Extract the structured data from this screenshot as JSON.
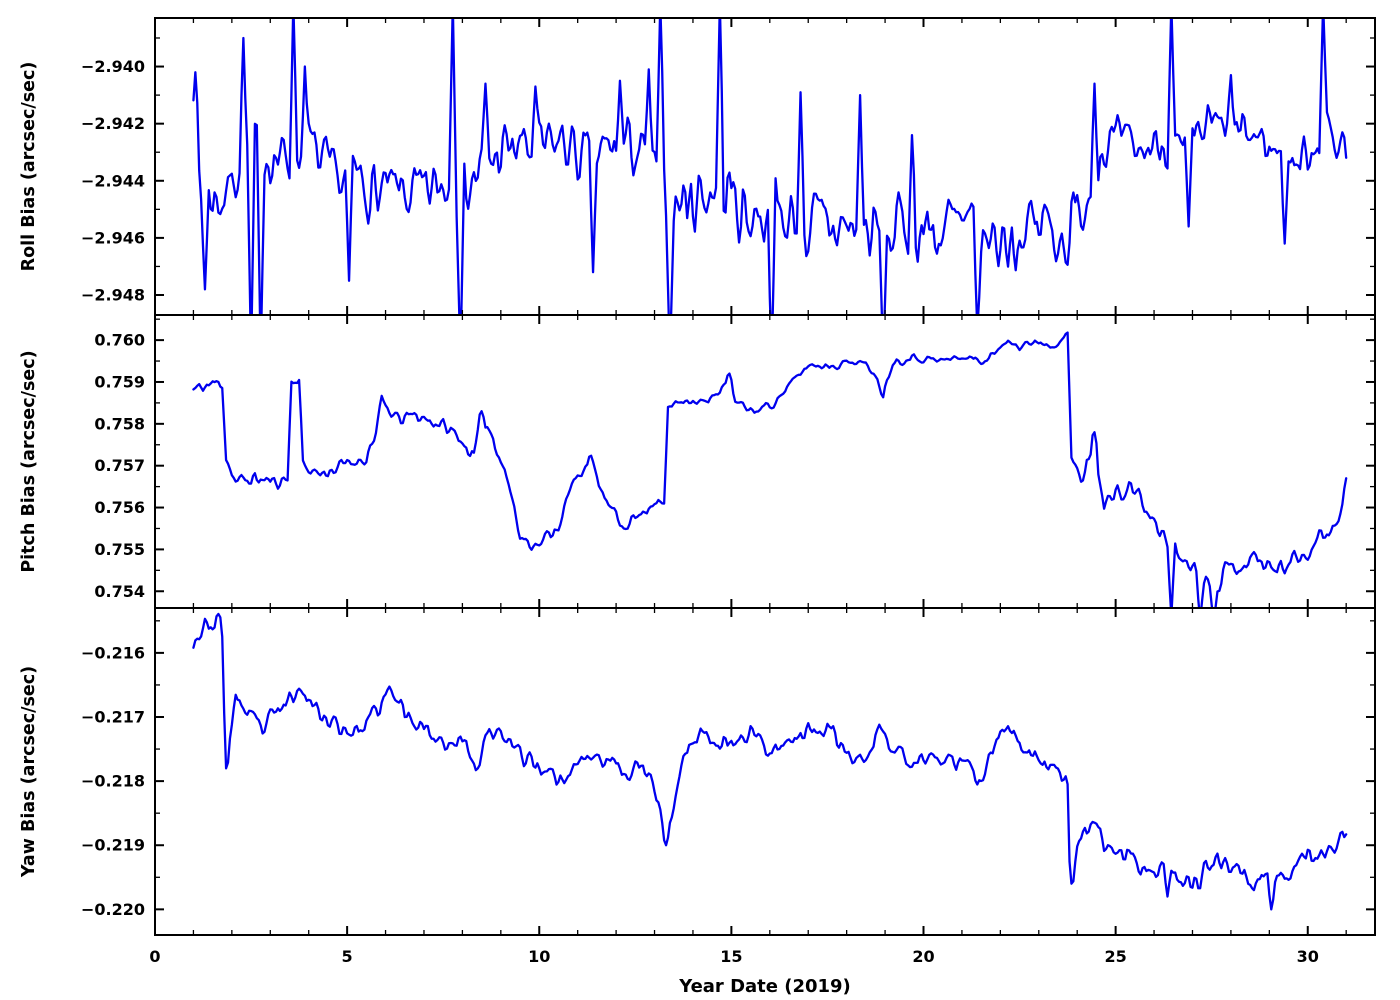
{
  "figure": {
    "xlabel": "Year Date (2019)",
    "x_range": [
      0,
      31.75
    ],
    "x_ticks": [
      0,
      5,
      10,
      15,
      20,
      25,
      30
    ],
    "x_tick_labels": [
      "0",
      "5",
      "10",
      "15",
      "20",
      "25",
      "30"
    ],
    "x_minor_step": 1,
    "grid": false,
    "background": "#ffffff",
    "axis_color": "#000000",
    "line_color": "#0000ee"
  },
  "chart_data": [
    {
      "type": "line",
      "name": "roll-bias",
      "ylabel": "Roll Bias (arcsec/sec)",
      "ylim": [
        -2.9487,
        -2.9383
      ],
      "y_ticks": [
        -2.94,
        -2.942,
        -2.944,
        -2.946,
        -2.948
      ],
      "y_tick_labels": [
        "−2.940",
        "−2.942",
        "−2.944",
        "−2.946",
        "−2.948"
      ],
      "y_minor_step": 0.001,
      "x_start": 1.0,
      "x_end": 31.0,
      "dx": 0.05,
      "seed": 7,
      "noise_amp": 0.001,
      "noise_segments": [
        [
          1,
          13,
          1.0
        ],
        [
          13,
          24,
          1.25
        ],
        [
          24,
          31,
          0.75
        ]
      ],
      "trend": [
        [
          1.0,
          -2.9415
        ],
        [
          1.2,
          -2.9445
        ],
        [
          1.8,
          -2.9446
        ],
        [
          2.2,
          -2.9432
        ],
        [
          2.8,
          -2.9428
        ],
        [
          3.4,
          -2.9434
        ],
        [
          4.0,
          -2.9428
        ],
        [
          4.6,
          -2.944
        ],
        [
          5.2,
          -2.9438
        ],
        [
          5.8,
          -2.9445
        ],
        [
          6.4,
          -2.9444
        ],
        [
          7.0,
          -2.9446
        ],
        [
          7.6,
          -2.944
        ],
        [
          8.2,
          -2.9441
        ],
        [
          8.8,
          -2.9432
        ],
        [
          9.4,
          -2.9428
        ],
        [
          10.0,
          -2.943
        ],
        [
          10.6,
          -2.9426
        ],
        [
          11.2,
          -2.9434
        ],
        [
          11.8,
          -2.943
        ],
        [
          12.4,
          -2.9427
        ],
        [
          13.0,
          -2.9438
        ],
        [
          13.6,
          -2.9448
        ],
        [
          14.2,
          -2.9444
        ],
        [
          14.8,
          -2.9442
        ],
        [
          15.4,
          -2.9452
        ],
        [
          16.0,
          -2.945
        ],
        [
          16.6,
          -2.9454
        ],
        [
          17.2,
          -2.9457
        ],
        [
          17.8,
          -2.9456
        ],
        [
          18.4,
          -2.9458
        ],
        [
          19.0,
          -2.946
        ],
        [
          19.6,
          -2.9455
        ],
        [
          20.2,
          -2.9458
        ],
        [
          20.8,
          -2.9456
        ],
        [
          21.4,
          -2.9462
        ],
        [
          22.0,
          -2.946
        ],
        [
          22.6,
          -2.9458
        ],
        [
          23.2,
          -2.9455
        ],
        [
          23.8,
          -2.9459
        ],
        [
          24.2,
          -2.9448
        ],
        [
          24.6,
          -2.943
        ],
        [
          25.0,
          -2.9426
        ],
        [
          25.6,
          -2.943
        ],
        [
          26.2,
          -2.9426
        ],
        [
          26.8,
          -2.9432
        ],
        [
          27.4,
          -2.942
        ],
        [
          28.0,
          -2.9424
        ],
        [
          28.6,
          -2.9424
        ],
        [
          29.2,
          -2.943
        ],
        [
          29.8,
          -2.9434
        ],
        [
          30.4,
          -2.9422
        ],
        [
          31.0,
          -2.9428
        ]
      ],
      "spikes": [
        [
          1.05,
          -2.9402
        ],
        [
          1.3,
          -2.9478
        ],
        [
          2.3,
          -2.939
        ],
        [
          2.5,
          -2.9502
        ],
        [
          2.75,
          -2.9502
        ],
        [
          3.6,
          -2.9378
        ],
        [
          3.9,
          -2.94
        ],
        [
          5.05,
          -2.9475
        ],
        [
          7.75,
          -2.9378
        ],
        [
          7.95,
          -2.9502
        ],
        [
          8.6,
          -2.9406
        ],
        [
          9.9,
          -2.9407
        ],
        [
          11.4,
          -2.9472
        ],
        [
          12.1,
          -2.9405
        ],
        [
          12.85,
          -2.9401
        ],
        [
          13.15,
          -2.9378
        ],
        [
          13.4,
          -2.9502
        ],
        [
          14.7,
          -2.9378
        ],
        [
          16.05,
          -2.9502
        ],
        [
          16.8,
          -2.9409
        ],
        [
          18.35,
          -2.941
        ],
        [
          18.95,
          -2.9502
        ],
        [
          19.7,
          -2.9424
        ],
        [
          21.4,
          -2.9492
        ],
        [
          24.45,
          -2.9406
        ],
        [
          26.45,
          -2.9378
        ],
        [
          26.9,
          -2.9456
        ],
        [
          28.0,
          -2.9403
        ],
        [
          29.4,
          -2.9462
        ],
        [
          30.4,
          -2.9378
        ]
      ]
    },
    {
      "type": "line",
      "name": "pitch-bias",
      "ylabel": "Pitch Bias (arcsec/sec)",
      "ylim": [
        0.7536,
        0.7606
      ],
      "y_ticks": [
        0.76,
        0.759,
        0.758,
        0.757,
        0.756,
        0.755,
        0.754
      ],
      "y_tick_labels": [
        "0.760",
        "0.759",
        "0.758",
        "0.757",
        "0.756",
        "0.755",
        "0.754"
      ],
      "y_minor_step": 0.0005,
      "x_start": 1.0,
      "x_end": 31.0,
      "dx": 0.05,
      "seed": 11,
      "noise_amp": 0.00016,
      "noise_segments": [
        [
          1,
          13.3,
          1.0
        ],
        [
          13.3,
          23.8,
          0.6
        ],
        [
          23.8,
          31,
          1.4
        ]
      ],
      "trend": [
        [
          1.0,
          0.7588
        ],
        [
          1.3,
          0.7589
        ],
        [
          1.75,
          0.759
        ],
        [
          1.85,
          0.7572
        ],
        [
          2.1,
          0.7566
        ],
        [
          2.6,
          0.7567
        ],
        [
          3.1,
          0.7566
        ],
        [
          3.45,
          0.7567
        ],
        [
          3.55,
          0.759
        ],
        [
          3.75,
          0.7591
        ],
        [
          3.85,
          0.757
        ],
        [
          4.3,
          0.7568
        ],
        [
          4.9,
          0.757
        ],
        [
          5.5,
          0.7572
        ],
        [
          5.75,
          0.7578
        ],
        [
          5.9,
          0.7585
        ],
        [
          6.3,
          0.7581
        ],
        [
          6.8,
          0.7582
        ],
        [
          7.4,
          0.758
        ],
        [
          7.9,
          0.7577
        ],
        [
          8.3,
          0.7572
        ],
        [
          8.5,
          0.7582
        ],
        [
          8.8,
          0.7577
        ],
        [
          9.2,
          0.7566
        ],
        [
          9.5,
          0.7553
        ],
        [
          10.0,
          0.7551
        ],
        [
          10.5,
          0.7556
        ],
        [
          10.9,
          0.7566
        ],
        [
          11.3,
          0.7572
        ],
        [
          11.7,
          0.7562
        ],
        [
          12.1,
          0.7556
        ],
        [
          12.6,
          0.7558
        ],
        [
          13.0,
          0.7562
        ],
        [
          13.25,
          0.756
        ],
        [
          13.35,
          0.7584
        ],
        [
          13.8,
          0.7586
        ],
        [
          14.4,
          0.7585
        ],
        [
          14.95,
          0.7591
        ],
        [
          15.1,
          0.7585
        ],
        [
          15.6,
          0.7583
        ],
        [
          16.1,
          0.7585
        ],
        [
          16.6,
          0.759
        ],
        [
          17.0,
          0.7594
        ],
        [
          17.6,
          0.7594
        ],
        [
          18.2,
          0.7595
        ],
        [
          18.7,
          0.7593
        ],
        [
          18.95,
          0.7587
        ],
        [
          19.2,
          0.7595
        ],
        [
          19.8,
          0.7596
        ],
        [
          20.4,
          0.7595
        ],
        [
          21.0,
          0.7596
        ],
        [
          21.6,
          0.7595
        ],
        [
          21.9,
          0.7597
        ],
        [
          22.2,
          0.7601
        ],
        [
          22.5,
          0.7598
        ],
        [
          22.9,
          0.76
        ],
        [
          23.3,
          0.7599
        ],
        [
          23.75,
          0.7601
        ],
        [
          23.85,
          0.7572
        ],
        [
          24.1,
          0.7566
        ],
        [
          24.45,
          0.7577
        ],
        [
          24.7,
          0.7561
        ],
        [
          25.1,
          0.7563
        ],
        [
          25.5,
          0.7565
        ],
        [
          25.9,
          0.7557
        ],
        [
          26.3,
          0.7553
        ],
        [
          26.7,
          0.7548
        ],
        [
          27.1,
          0.7546
        ],
        [
          27.5,
          0.7541
        ],
        [
          27.9,
          0.7545
        ],
        [
          28.3,
          0.7547
        ],
        [
          28.7,
          0.7548
        ],
        [
          29.1,
          0.7545
        ],
        [
          29.5,
          0.7547
        ],
        [
          29.9,
          0.7549
        ],
        [
          30.3,
          0.7553
        ],
        [
          30.7,
          0.7556
        ],
        [
          31.0,
          0.7562
        ]
      ],
      "spikes": [
        [
          8.5,
          0.7583
        ],
        [
          14.95,
          0.7592
        ],
        [
          24.45,
          0.7578
        ],
        [
          26.45,
          0.7534
        ],
        [
          27.2,
          0.7533
        ],
        [
          27.55,
          0.7533
        ],
        [
          31.0,
          0.7567
        ]
      ]
    },
    {
      "type": "line",
      "name": "yaw-bias",
      "ylabel": "Yaw Bias (arcsec/sec)",
      "ylim": [
        -0.2204,
        -0.2153
      ],
      "y_ticks": [
        -0.216,
        -0.217,
        -0.218,
        -0.219,
        -0.22
      ],
      "y_tick_labels": [
        "−0.216",
        "−0.217",
        "−0.218",
        "−0.219",
        "−0.220"
      ],
      "y_minor_step": 0.0005,
      "x_start": 1.0,
      "x_end": 31.0,
      "dx": 0.05,
      "seed": 23,
      "noise_amp": 0.00014,
      "noise_segments": [
        [
          1,
          23.8,
          1.0
        ],
        [
          23.8,
          31,
          1.1
        ]
      ],
      "trend": [
        [
          1.0,
          -0.2158
        ],
        [
          1.3,
          -0.2156
        ],
        [
          1.7,
          -0.2155
        ],
        [
          1.8,
          -0.216
        ],
        [
          1.9,
          -0.2177
        ],
        [
          2.1,
          -0.2166
        ],
        [
          2.4,
          -0.217
        ],
        [
          2.8,
          -0.2172
        ],
        [
          3.2,
          -0.2169
        ],
        [
          3.6,
          -0.2167
        ],
        [
          3.9,
          -0.2165
        ],
        [
          4.2,
          -0.2169
        ],
        [
          4.6,
          -0.2171
        ],
        [
          5.0,
          -0.2172
        ],
        [
          5.4,
          -0.2172
        ],
        [
          5.8,
          -0.2169
        ],
        [
          6.1,
          -0.2166
        ],
        [
          6.5,
          -0.2169
        ],
        [
          6.9,
          -0.2171
        ],
        [
          7.3,
          -0.2173
        ],
        [
          7.7,
          -0.2174
        ],
        [
          8.1,
          -0.2174
        ],
        [
          8.35,
          -0.2178
        ],
        [
          8.6,
          -0.2173
        ],
        [
          9.0,
          -0.2173
        ],
        [
          9.4,
          -0.2175
        ],
        [
          9.8,
          -0.2177
        ],
        [
          10.2,
          -0.2178
        ],
        [
          10.6,
          -0.218
        ],
        [
          11.0,
          -0.2177
        ],
        [
          11.4,
          -0.2176
        ],
        [
          11.8,
          -0.2177
        ],
        [
          12.2,
          -0.2178
        ],
        [
          12.6,
          -0.2178
        ],
        [
          13.0,
          -0.2181
        ],
        [
          13.3,
          -0.2189
        ],
        [
          13.6,
          -0.2181
        ],
        [
          13.9,
          -0.2174
        ],
        [
          14.3,
          -0.2172
        ],
        [
          14.7,
          -0.2174
        ],
        [
          15.1,
          -0.2174
        ],
        [
          15.5,
          -0.2172
        ],
        [
          15.9,
          -0.2175
        ],
        [
          16.3,
          -0.2174
        ],
        [
          16.7,
          -0.2173
        ],
        [
          17.1,
          -0.2172
        ],
        [
          17.5,
          -0.2172
        ],
        [
          17.9,
          -0.2175
        ],
        [
          18.3,
          -0.2177
        ],
        [
          18.7,
          -0.2175
        ],
        [
          18.85,
          -0.2171
        ],
        [
          19.1,
          -0.2175
        ],
        [
          19.5,
          -0.2176
        ],
        [
          19.9,
          -0.2177
        ],
        [
          20.3,
          -0.2176
        ],
        [
          20.7,
          -0.2177
        ],
        [
          21.1,
          -0.2178
        ],
        [
          21.5,
          -0.218
        ],
        [
          21.8,
          -0.2176
        ],
        [
          22.0,
          -0.2172
        ],
        [
          22.3,
          -0.2173
        ],
        [
          22.7,
          -0.2175
        ],
        [
          23.1,
          -0.2177
        ],
        [
          23.5,
          -0.2178
        ],
        [
          23.75,
          -0.218
        ],
        [
          23.85,
          -0.2195
        ],
        [
          24.1,
          -0.2189
        ],
        [
          24.4,
          -0.2187
        ],
        [
          24.7,
          -0.219
        ],
        [
          25.1,
          -0.2191
        ],
        [
          25.5,
          -0.2192
        ],
        [
          25.9,
          -0.2194
        ],
        [
          26.3,
          -0.2193
        ],
        [
          26.7,
          -0.2195
        ],
        [
          27.1,
          -0.2196
        ],
        [
          27.5,
          -0.2193
        ],
        [
          27.9,
          -0.2193
        ],
        [
          28.3,
          -0.2194
        ],
        [
          28.7,
          -0.2195
        ],
        [
          29.1,
          -0.2196
        ],
        [
          29.5,
          -0.2194
        ],
        [
          29.9,
          -0.2192
        ],
        [
          30.3,
          -0.2191
        ],
        [
          30.7,
          -0.219
        ],
        [
          31.0,
          -0.2188
        ]
      ],
      "spikes": [
        [
          1.85,
          -0.2178
        ],
        [
          13.3,
          -0.219
        ],
        [
          23.85,
          -0.2196
        ],
        [
          26.35,
          -0.2198
        ],
        [
          28.6,
          -0.2197
        ],
        [
          29.05,
          -0.22
        ]
      ]
    }
  ]
}
